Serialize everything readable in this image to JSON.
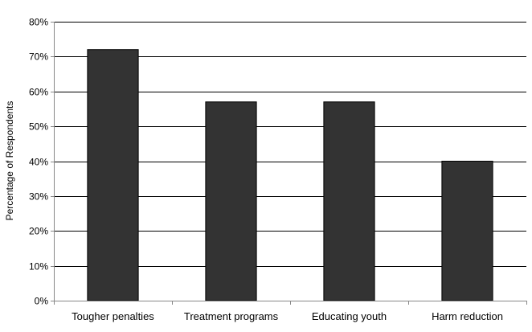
{
  "chart_data": {
    "type": "bar",
    "categories": [
      "Tougher penalties",
      "Treatment programs",
      "Educating youth",
      "Harm reduction"
    ],
    "values": [
      72,
      57,
      57,
      40
    ],
    "ylabel": "Percentage of Respondents",
    "xlabel": "",
    "title": "",
    "ylim": [
      0,
      80
    ],
    "ytick_step": 10,
    "ytick_format": "percent",
    "grid": true,
    "legend": "none",
    "colors": {
      "bar_fill": "#333333",
      "bar_stroke": "#000000",
      "gridline": "#000000",
      "axis": "#888888",
      "background": "#ffffff"
    }
  }
}
